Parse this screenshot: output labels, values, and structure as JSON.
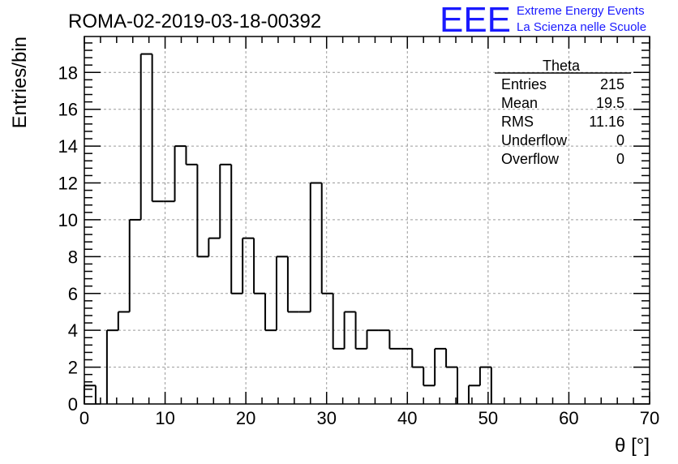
{
  "chart_data": {
    "type": "histogram",
    "title": "ROMA-02-2019-03-18-00392",
    "xlabel": "θ [°]",
    "ylabel": "Entries/bin",
    "xlim": [
      0,
      70
    ],
    "ylim": [
      0,
      19.95
    ],
    "bin_width": 1.4,
    "x_ticks": [
      0,
      10,
      20,
      30,
      40,
      50,
      60,
      70
    ],
    "y_ticks": [
      0,
      2,
      4,
      6,
      8,
      10,
      12,
      14,
      16,
      18
    ],
    "grid": true,
    "series": [
      {
        "name": "Theta",
        "bin_edges_start": 0,
        "values": [
          1,
          0,
          4,
          5,
          10,
          19,
          11,
          11,
          14,
          13,
          8,
          9,
          13,
          6,
          9,
          6,
          4,
          8,
          5,
          5,
          12,
          6,
          3,
          5,
          3,
          4,
          4,
          3,
          3,
          2,
          1,
          3,
          2,
          0,
          1,
          2,
          0,
          0,
          0,
          0,
          0,
          0,
          0,
          0,
          0,
          0,
          0,
          0,
          0,
          0
        ]
      }
    ]
  },
  "stats_box": {
    "title": "Theta",
    "rows": [
      {
        "label": "Entries",
        "value": "215"
      },
      {
        "label": "Mean",
        "value": "19.5"
      },
      {
        "label": "RMS",
        "value": "11.16"
      },
      {
        "label": "Underflow",
        "value": "0"
      },
      {
        "label": "Overflow",
        "value": "0"
      }
    ]
  },
  "logo": {
    "mark": "EEE",
    "line1": "Extreme Energy Events",
    "line2": "La Scienza nelle Scuole",
    "color": "#1a1aff"
  }
}
